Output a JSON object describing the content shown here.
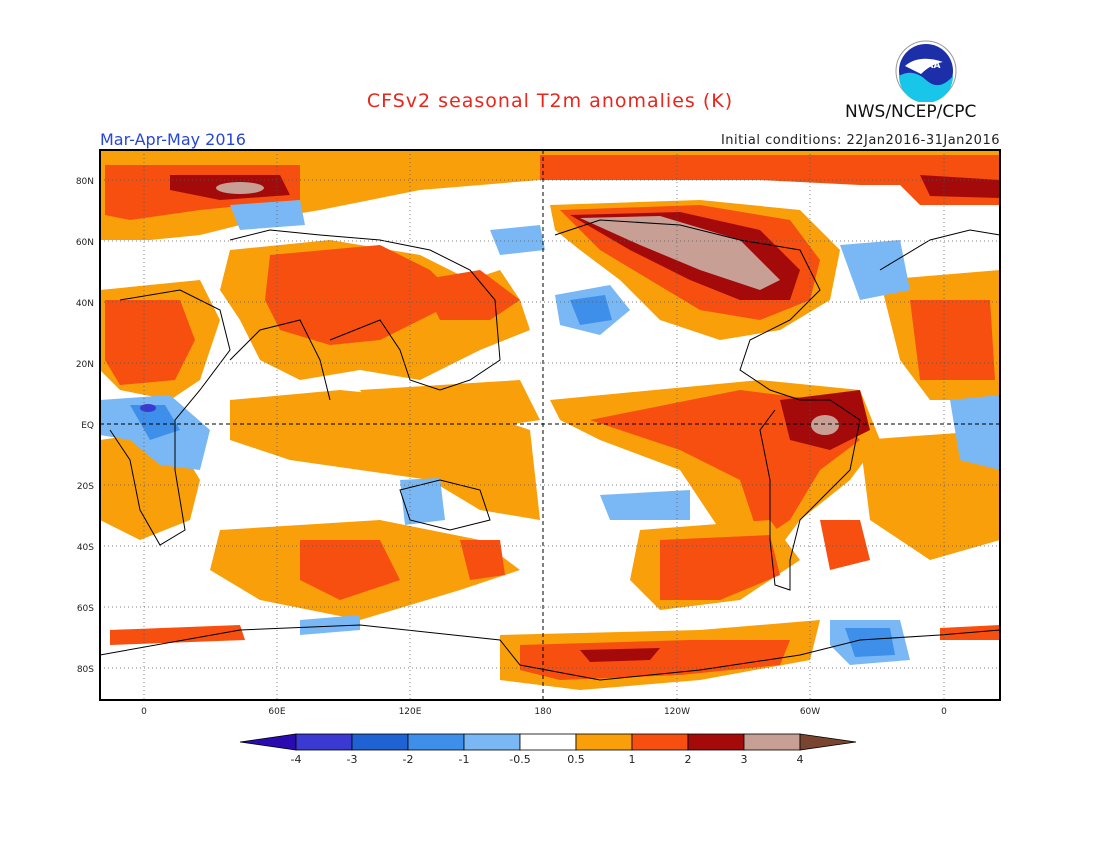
{
  "header": {
    "title": "CFSv2 seasonal T2m anomalies (K)",
    "period": "Mar-Apr-May 2016",
    "initial_conditions": "Initial conditions: 22Jan2016-31Jan2016",
    "agency": "NWS/NCEP/CPC",
    "logo_text": "NOAA"
  },
  "axes": {
    "lat_labels": [
      "80N",
      "60N",
      "40N",
      "20N",
      "EQ",
      "20S",
      "40S",
      "60S",
      "80S"
    ],
    "lon_labels": [
      "0",
      "60E",
      "120E",
      "180",
      "120W",
      "60W",
      "0"
    ]
  },
  "colorbar": {
    "labels": [
      "-4",
      "-3",
      "-2",
      "-1",
      "-0.5",
      "0.5",
      "1",
      "2",
      "3",
      "4"
    ],
    "colors": [
      "#2a0bb0",
      "#3a3ad2",
      "#1f62d4",
      "#3e8fea",
      "#7ab8f5",
      "#ffffff",
      "#f89f0a",
      "#f64f10",
      "#a50a0a",
      "#c79f94",
      "#7a4530"
    ]
  }
}
